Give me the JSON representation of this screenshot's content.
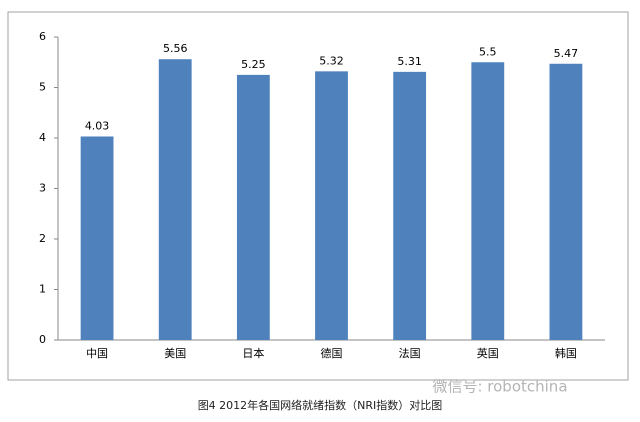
{
  "chart_data": {
    "type": "bar",
    "title": "图4  2012年各国网络就绪指数（NRI指数）对比图",
    "watermark": "微信号: robotchina",
    "categories": [
      "中国",
      "美国",
      "日本",
      "德国",
      "法国",
      "英国",
      "韩国"
    ],
    "values": [
      4.03,
      5.56,
      5.25,
      5.32,
      5.31,
      5.5,
      5.47
    ],
    "color": "#4f81bd",
    "ylim": [
      0,
      6
    ],
    "yticks": [
      0,
      1,
      2,
      3,
      4,
      5,
      6
    ],
    "grid": false
  }
}
